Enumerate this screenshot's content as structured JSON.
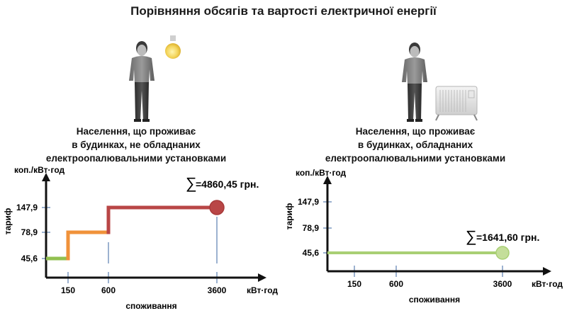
{
  "title": "Порівняння  обсягів та вартості електричної енергії",
  "panels": [
    {
      "caption_lines": [
        "Населення, що проживає",
        "в будинках, не обладнаних",
        "електроопалювальними установками"
      ],
      "total_label": "=4860,45 грн.",
      "sum_symbol": "∑",
      "appliance": "light-bulb-icon"
    },
    {
      "caption_lines": [
        "Населення, що проживає",
        "в будинках, обладнаних",
        "електроопалювальними установками"
      ],
      "total_label": "=1641,60 грн.",
      "sum_symbol": "∑",
      "appliance": "electric-heater-icon"
    }
  ],
  "chart_data": [
    {
      "type": "line",
      "subtype": "step",
      "xlabel": "споживання",
      "x_unit": "кВт·год",
      "ylabel": "тариф",
      "y_unit": "коп./кВт·год",
      "x_ticks": [
        150,
        600,
        3600
      ],
      "x_tick_labels": [
        "150",
        "600",
        "3600"
      ],
      "y_ticks": [
        45.6,
        78.9,
        147.9
      ],
      "y_tick_labels": [
        "45,6",
        "78,9",
        "147,9"
      ],
      "segments": [
        {
          "x_from": 0,
          "x_to": 150,
          "y": 45.6,
          "color": "#92c050"
        },
        {
          "x_from": 150,
          "x_to": 600,
          "y": 78.9,
          "color": "#f0923a"
        },
        {
          "x_from": 600,
          "x_to": 3600,
          "y": 147.9,
          "color": "#b94646"
        }
      ],
      "end_marker": {
        "x": 3600,
        "y": 147.9,
        "color": "#b94646"
      },
      "total": "=4860,45 грн."
    },
    {
      "type": "line",
      "xlabel": "споживання",
      "x_unit": "кВт·год",
      "ylabel": "тариф",
      "y_unit": "коп./кВт·год",
      "x_ticks": [
        150,
        600,
        3600
      ],
      "x_tick_labels": [
        "150",
        "600",
        "3600"
      ],
      "y_ticks": [
        45.6,
        78.9,
        147.9
      ],
      "y_tick_labels": [
        "45,6",
        "78,9",
        "147,9"
      ],
      "segments": [
        {
          "x_from": 0,
          "x_to": 3600,
          "y": 45.6,
          "color": "#a9cf74"
        }
      ],
      "end_marker": {
        "x": 3600,
        "y": 45.6,
        "color": "#c4de9a"
      },
      "total": "=1641,60 грн."
    }
  ]
}
